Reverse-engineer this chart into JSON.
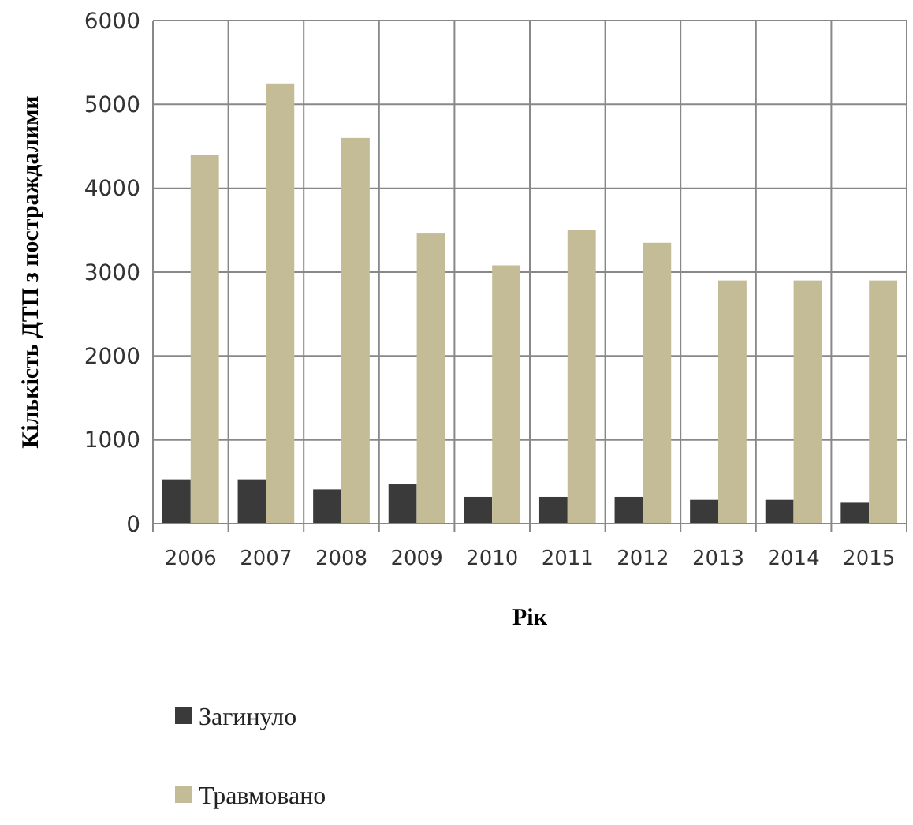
{
  "chart_data": {
    "type": "bar",
    "categories": [
      "2006",
      "2007",
      "2008",
      "2009",
      "2010",
      "2011",
      "2012",
      "2013",
      "2014",
      "2015"
    ],
    "series": [
      {
        "name": "Загинуло",
        "color": "#3a3a3a",
        "values": [
          530,
          530,
          410,
          470,
          320,
          320,
          320,
          285,
          285,
          250
        ]
      },
      {
        "name": "Травмовано",
        "color": "#c4bc96",
        "values": [
          4400,
          5250,
          4600,
          3460,
          3080,
          3500,
          3350,
          2900,
          2900,
          2900
        ]
      }
    ],
    "xlabel": "Рік",
    "ylabel": "Кількість ДТП з постраждалими",
    "ylim": [
      0,
      6000
    ],
    "yticks": [
      0,
      1000,
      2000,
      3000,
      4000,
      5000,
      6000
    ],
    "grid": true,
    "legend": "bottom"
  }
}
